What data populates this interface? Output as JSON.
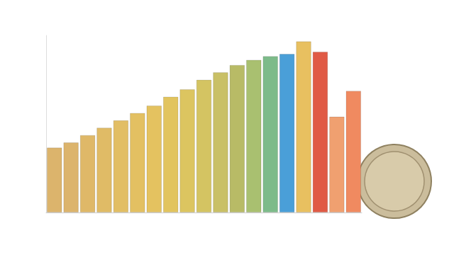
{
  "chart_data": {
    "type": "bar",
    "categories": [
      null,
      null,
      null,
      null,
      null,
      null,
      null,
      null,
      null,
      null,
      null,
      null,
      null,
      null,
      null,
      null,
      null,
      null,
      null
    ],
    "values": [
      88,
      95,
      105,
      115,
      125,
      135,
      145,
      157,
      167,
      180,
      190,
      200,
      207,
      212,
      215,
      232,
      218,
      130,
      165
    ],
    "colors": [
      "#dcb46c",
      "#dcb46c",
      "#dfb868",
      "#e0bb66",
      "#e2be64",
      "#e3c062",
      "#e4c260",
      "#e2c45e",
      "#dcc560",
      "#d4c462",
      "#c9c066",
      "#b8bb66",
      "#a9c070",
      "#7dbb8a",
      "#4a9fd8",
      "#e8c060",
      "#e05a45",
      "#f0a070",
      "#f08a60"
    ],
    "ylim": [
      0,
      240
    ],
    "grid": false,
    "tick_labels": false
  }
}
